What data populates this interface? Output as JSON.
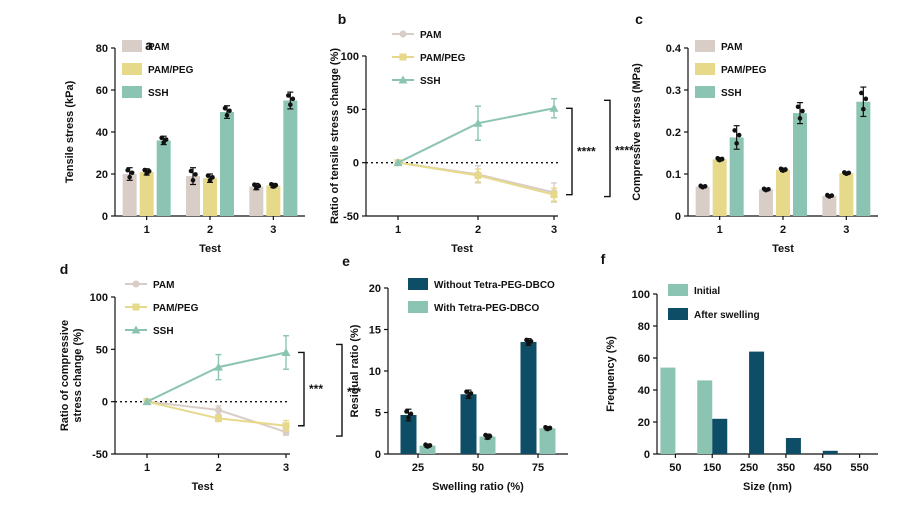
{
  "colors": {
    "pam": "#d9cdc7",
    "pam_peg": "#e6d98a",
    "ssh": "#8cc4b3",
    "dark": "#0e4d66",
    "light": "#8cc4b3",
    "dot": "#111111"
  },
  "chart_data": [
    {
      "panel": "a",
      "type": "bar",
      "ylabel": "Tensile stress (kPa)",
      "xlabel": "Test",
      "categories": [
        "1",
        "2",
        "3"
      ],
      "ylim": [
        0,
        80
      ],
      "yticks": [
        0,
        20,
        40,
        60,
        80
      ],
      "legend": "top-left",
      "series": [
        {
          "name": "PAM",
          "color": "pam",
          "values": [
            20,
            19,
            14
          ],
          "err": [
            3,
            4,
            1.5
          ]
        },
        {
          "name": "PAM/PEG",
          "color": "pam_peg",
          "values": [
            21,
            18,
            14.5
          ],
          "err": [
            1.5,
            2,
            1
          ]
        },
        {
          "name": "SSH",
          "color": "ssh",
          "values": [
            36,
            49.5,
            55
          ],
          "err": [
            2,
            3,
            4
          ]
        }
      ]
    },
    {
      "panel": "b",
      "type": "line",
      "ylabel": "Ratio of tensile stress change (%)",
      "xlabel": "Test",
      "x": [
        "1",
        "2",
        "3"
      ],
      "ylim": [
        -50,
        100
      ],
      "yticks": [
        -50,
        0,
        50,
        100
      ],
      "legend": "top-left",
      "series": [
        {
          "name": "PAM",
          "color": "pam",
          "marker": "circle",
          "values": [
            0,
            -11,
            -28
          ],
          "err": [
            0,
            8,
            9
          ]
        },
        {
          "name": "PAM/PEG",
          "color": "pam_peg",
          "marker": "square",
          "values": [
            0,
            -12,
            -30
          ],
          "err": [
            0,
            6,
            6
          ]
        },
        {
          "name": "SSH",
          "color": "ssh",
          "marker": "triangle",
          "values": [
            0,
            37,
            51
          ],
          "err": [
            0,
            16,
            9
          ]
        }
      ],
      "annotations": [
        "****",
        "****"
      ]
    },
    {
      "panel": "c",
      "type": "bar",
      "ylabel": "Compressive stress (MPa)",
      "xlabel": "Test",
      "categories": [
        "1",
        "2",
        "3"
      ],
      "ylim": [
        0,
        0.4
      ],
      "yticks": [
        0,
        0.1,
        0.2,
        0.3,
        0.4
      ],
      "legend": "top-left",
      "series": [
        {
          "name": "PAM",
          "color": "pam",
          "values": [
            0.07,
            0.063,
            0.048
          ],
          "err": [
            0.003,
            0.003,
            0.003
          ]
        },
        {
          "name": "PAM/PEG",
          "color": "pam_peg",
          "values": [
            0.135,
            0.11,
            0.102
          ],
          "err": [
            0.004,
            0.004,
            0.003
          ]
        },
        {
          "name": "SSH",
          "color": "ssh",
          "values": [
            0.187,
            0.245,
            0.272
          ],
          "err": [
            0.028,
            0.025,
            0.035
          ]
        }
      ]
    },
    {
      "panel": "d",
      "type": "line",
      "ylabel": "Ratio of compressive stress change (%)",
      "xlabel": "Test",
      "x": [
        "1",
        "2",
        "3"
      ],
      "ylim": [
        -50,
        100
      ],
      "yticks": [
        -50,
        0,
        50,
        100
      ],
      "legend": "top-left",
      "series": [
        {
          "name": "PAM",
          "color": "pam",
          "marker": "circle",
          "values": [
            0,
            -8,
            -29
          ],
          "err": [
            0,
            4,
            3
          ]
        },
        {
          "name": "PAM/PEG",
          "color": "pam_peg",
          "marker": "square",
          "values": [
            0,
            -16,
            -23
          ],
          "err": [
            0,
            3,
            5
          ]
        },
        {
          "name": "SSH",
          "color": "ssh",
          "marker": "triangle",
          "values": [
            0,
            33,
            47
          ],
          "err": [
            0,
            12,
            16
          ]
        }
      ],
      "annotations": [
        "***",
        "***"
      ]
    },
    {
      "panel": "e",
      "type": "bar",
      "ylabel": "Residual ratio (%)",
      "xlabel": "Swelling ratio (%)",
      "categories": [
        "25",
        "50",
        "75"
      ],
      "ylim": [
        0,
        20
      ],
      "yticks": [
        0,
        5,
        10,
        15,
        20
      ],
      "legend": "top-left",
      "series": [
        {
          "name": "Without Tetra-PEG-DBCO",
          "color": "dark",
          "values": [
            4.7,
            7.2,
            13.5
          ],
          "err": [
            0.7,
            0.5,
            0.4
          ]
        },
        {
          "name": "With Tetra-PEG-DBCO",
          "color": "light",
          "values": [
            1.0,
            2.1,
            3.1
          ],
          "err": [
            0.2,
            0.3,
            0.2
          ]
        }
      ]
    },
    {
      "panel": "f",
      "type": "bar",
      "ylabel": "Frequency (%)",
      "xlabel": "Size (nm)",
      "categories": [
        "50",
        "150",
        "250",
        "350",
        "450",
        "550"
      ],
      "ylim": [
        0,
        100
      ],
      "yticks": [
        0,
        20,
        40,
        60,
        80,
        100
      ],
      "legend": "top-left",
      "series": [
        {
          "name": "Initial",
          "color": "light",
          "values": [
            54,
            46,
            0,
            0,
            0,
            0
          ]
        },
        {
          "name": "After swelling",
          "color": "dark",
          "values": [
            0,
            22,
            64,
            10,
            2,
            0
          ]
        }
      ]
    }
  ]
}
